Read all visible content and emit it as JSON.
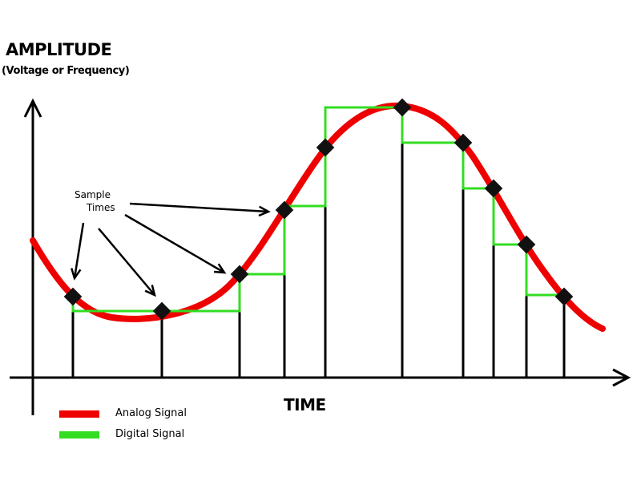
{
  "y_axis": {
    "title": "AMPLITUDE",
    "subtitle": "(Voltage or Frequency)"
  },
  "x_axis": {
    "title": "TIME"
  },
  "annotation": {
    "line1": "Sample",
    "line2": "Times"
  },
  "legend": [
    {
      "label": "Analog Signal",
      "color": "#ee0000"
    },
    {
      "label": "Digital Signal",
      "color": "#33dd22"
    }
  ],
  "colors": {
    "axis": "#000000",
    "sample_marker": "#111111"
  }
}
